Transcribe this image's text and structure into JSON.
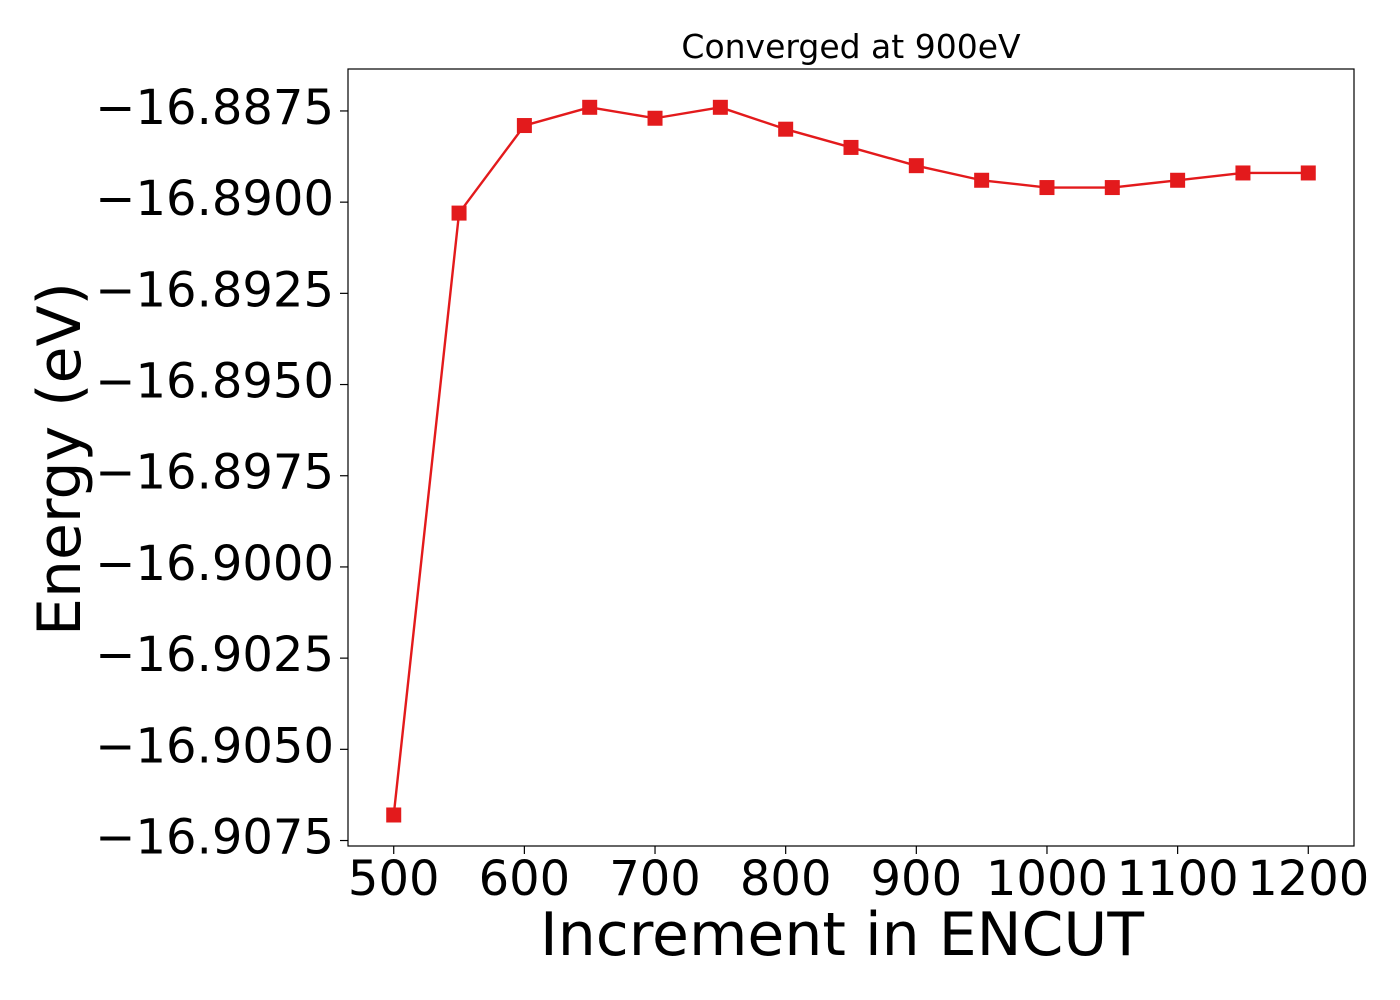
{
  "chart_data": {
    "type": "line",
    "title": "Converged at 900eV",
    "xlabel": "Increment in ENCUT",
    "ylabel": "Energy (eV)",
    "x": [
      500,
      550,
      600,
      650,
      700,
      750,
      800,
      850,
      900,
      950,
      1000,
      1050,
      1100,
      1150,
      1200
    ],
    "series": [
      {
        "values": [
          -16.9068,
          -16.8903,
          -16.8879,
          -16.8874,
          -16.8877,
          -16.8874,
          -16.888,
          -16.8885,
          -16.889,
          -16.8894,
          -16.8896,
          -16.8896,
          -16.8894,
          -16.8892,
          -16.8892
        ],
        "color": "#e31a1c",
        "marker": "square"
      }
    ],
    "xticks": [
      "500",
      "600",
      "700",
      "800",
      "900",
      "1000",
      "1100",
      "1200"
    ],
    "yticks": [
      "−16.8875",
      "−16.8900",
      "−16.8925",
      "−16.8950",
      "−16.8975",
      "−16.9000",
      "−16.9025",
      "−16.9050",
      "−16.9075"
    ],
    "xtick_values": [
      500,
      600,
      700,
      800,
      900,
      1000,
      1100,
      1200
    ],
    "ytick_values": [
      -16.8875,
      -16.89,
      -16.8925,
      -16.895,
      -16.8975,
      -16.9,
      -16.9025,
      -16.905,
      -16.9075
    ],
    "xlim": [
      465,
      1235
    ],
    "ylim": [
      -16.90765,
      -16.88635
    ],
    "grid": false,
    "legend": "none"
  }
}
